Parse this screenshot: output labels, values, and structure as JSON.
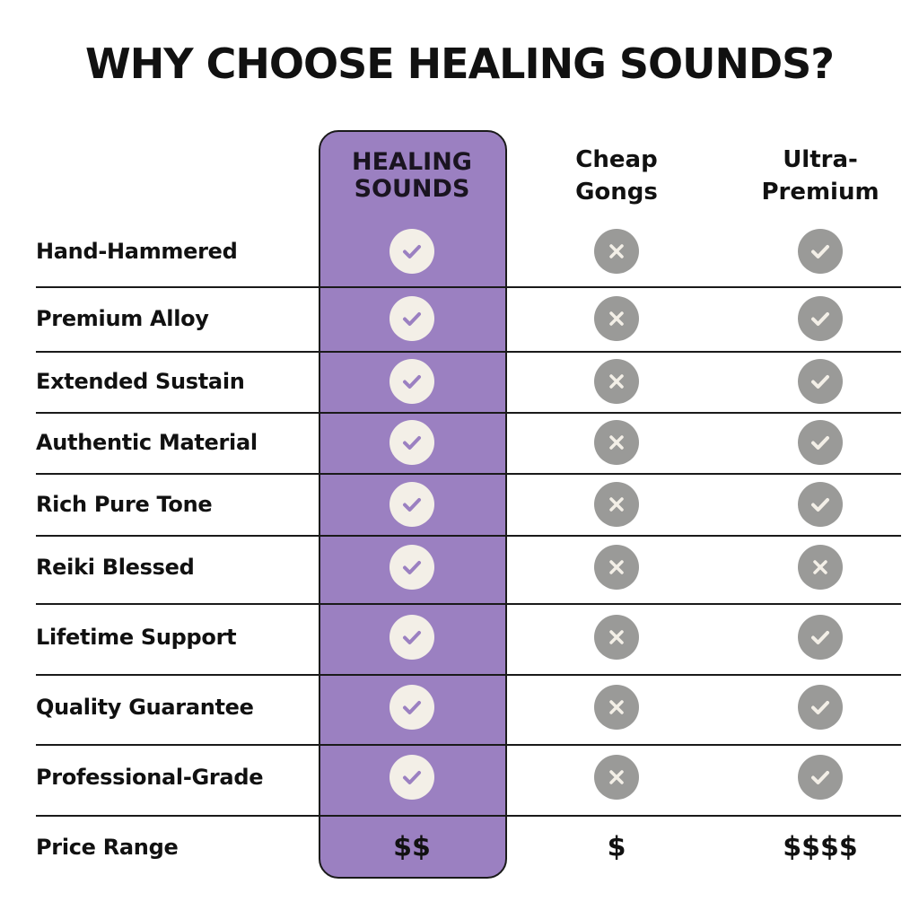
{
  "title": "WHY CHOOSE HEALING SOUNDS?",
  "colors": {
    "highlight": "#9b80c1",
    "check_highlight_bg": "#f3efe7",
    "icon_gray": "#9a9a98",
    "check_highlight_mark": "#9b80c1",
    "mark_white": "#f3efe7"
  },
  "columns": [
    {
      "label": "HEALING SOUNDS",
      "highlighted": true
    },
    {
      "label": "Cheap Gongs",
      "highlighted": false
    },
    {
      "label": "Ultra-Premium",
      "highlighted": false
    }
  ],
  "rows": [
    {
      "feature": "Hand-Hammered",
      "values": [
        "check",
        "x",
        "check"
      ]
    },
    {
      "feature": "Premium Alloy",
      "values": [
        "check",
        "x",
        "check"
      ]
    },
    {
      "feature": "Extended Sustain",
      "values": [
        "check",
        "x",
        "check"
      ]
    },
    {
      "feature": "Authentic Material",
      "values": [
        "check",
        "x",
        "check"
      ]
    },
    {
      "feature": "Rich Pure Tone",
      "values": [
        "check",
        "x",
        "check"
      ]
    },
    {
      "feature": "Reiki Blessed",
      "values": [
        "check",
        "x",
        "x"
      ]
    },
    {
      "feature": "Lifetime Support",
      "values": [
        "check",
        "x",
        "check"
      ]
    },
    {
      "feature": "Quality Guarantee",
      "values": [
        "check",
        "x",
        "check"
      ]
    },
    {
      "feature": "Professional-Grade",
      "values": [
        "check",
        "x",
        "check"
      ]
    }
  ],
  "price_row": {
    "feature": "Price Range",
    "values": [
      "$$",
      "$",
      "$$$$"
    ]
  }
}
